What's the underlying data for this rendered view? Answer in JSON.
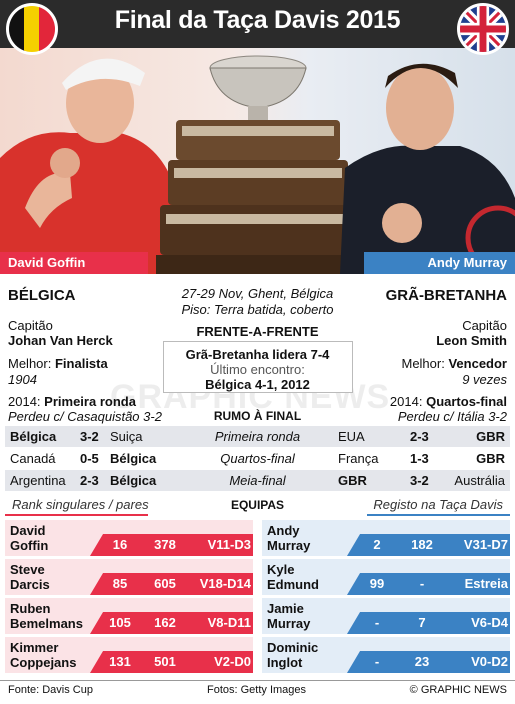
{
  "title": "Final da Taça Davis 2015",
  "left_player": {
    "name": "David Goffin",
    "country": "BÉLGICA"
  },
  "right_player": {
    "name": "Andy Murray",
    "country": "GRÃ-BRETANHA"
  },
  "event": {
    "dates": "27-29 Nov, Ghent, Bélgica",
    "surface": "Piso: Terra batida, coberto"
  },
  "head_to_head": {
    "title": "Frente-a-Frente",
    "lead": "Grã-Bretanha lidera 7-4",
    "last_label": "Último encontro:",
    "last_result": "Bélgica 4-1, 2012"
  },
  "left_info": {
    "captain_label": "Capitão",
    "captain": "Johan Van Herck",
    "best_label": "Melhor:",
    "best": "Finalista",
    "best_year": "1904",
    "y2014_label": "2014:",
    "y2014": "Primeira ronda",
    "y2014_note": "Perdeu c/ Casaquistão 3-2"
  },
  "right_info": {
    "captain_label": "Capitão",
    "captain": "Leon Smith",
    "best_label": "Melhor:",
    "best": "Vencedor",
    "best_note": "9 vezes",
    "y2014_label": "2014:",
    "y2014": "Quartos-final",
    "y2014_note": "Perdeu c/ Itália 3-2"
  },
  "road": {
    "title": "Rumo à Final",
    "rows": [
      {
        "l1": "Bélgica",
        "ls": "3-2",
        "l2": "Suiça",
        "round": "Primeira ronda",
        "r1": "EUA",
        "rs": "2-3",
        "r2": "GBR"
      },
      {
        "l1": "Canadá",
        "ls": "0-5",
        "l2": "Bélgica",
        "round": "Quartos-final",
        "r1": "França",
        "rs": "1-3",
        "r2": "GBR"
      },
      {
        "l1": "Argentina",
        "ls": "2-3",
        "l2": "Bélgica",
        "round": "Meia-final",
        "r1": "GBR",
        "rs": "3-2",
        "r2": "Austrália"
      }
    ]
  },
  "teams": {
    "left_caption": "Rank singulares / pares",
    "title": "Equipas",
    "right_caption": "Registo na Taça Davis",
    "left": [
      {
        "first": "David",
        "last": "Goffin",
        "sing": "16",
        "dbl": "378",
        "rec": "V11-D3"
      },
      {
        "first": "Steve",
        "last": "Darcis",
        "sing": "85",
        "dbl": "605",
        "rec": "V18-D14"
      },
      {
        "first": "Ruben",
        "last": "Bemelmans",
        "sing": "105",
        "dbl": "162",
        "rec": "V8-D11"
      },
      {
        "first": "Kimmer",
        "last": "Coppejans",
        "sing": "131",
        "dbl": "501",
        "rec": "V2-D0"
      }
    ],
    "right": [
      {
        "first": "Andy",
        "last": "Murray",
        "sing": "2",
        "dbl": "182",
        "rec": "V31-D7"
      },
      {
        "first": "Kyle",
        "last": "Edmund",
        "sing": "99",
        "dbl": "-",
        "rec": "Estreia"
      },
      {
        "first": "Jamie",
        "last": "Murray",
        "sing": "-",
        "dbl": "7",
        "rec": "V6-D4"
      },
      {
        "first": "Dominic",
        "last": "Inglot",
        "sing": "-",
        "dbl": "23",
        "rec": "V0-D2"
      }
    ]
  },
  "footer": {
    "source": "Fonte: Davis Cup",
    "photos": "Fotos: Getty Images",
    "copyright": "© GRAPHIC NEWS"
  },
  "watermark": "GRAPHIC NEWS",
  "colors": {
    "belgium": "#e8304a",
    "britain": "#3b82c4",
    "title_bg": "#2b2b2b"
  }
}
